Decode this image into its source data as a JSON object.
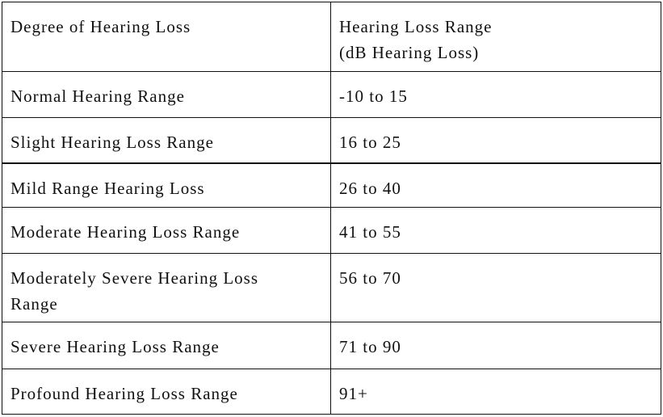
{
  "table": {
    "header": [
      [
        "Degree of Hearing Loss"
      ],
      [
        "Hearing Loss Range",
        "(dB Hearing Loss)"
      ]
    ],
    "rows": [
      [
        [
          "Normal Hearing Range"
        ],
        [
          "-10 to 15"
        ]
      ],
      [
        [
          "Slight Hearing Loss Range"
        ],
        [
          "16 to 25"
        ]
      ],
      [
        [
          "Mild Range Hearing Loss"
        ],
        [
          "26 to 40"
        ]
      ],
      [
        [
          "Moderate Hearing Loss Range"
        ],
        [
          "41 to 55"
        ]
      ],
      [
        [
          "Moderately Severe Hearing Loss",
          "Range"
        ],
        [
          "56 to 70"
        ]
      ],
      [
        [
          "Severe Hearing Loss Range"
        ],
        [
          "71 to 90"
        ]
      ],
      [
        [
          "Profound Hearing Loss Range"
        ],
        [
          "91+"
        ]
      ]
    ]
  }
}
